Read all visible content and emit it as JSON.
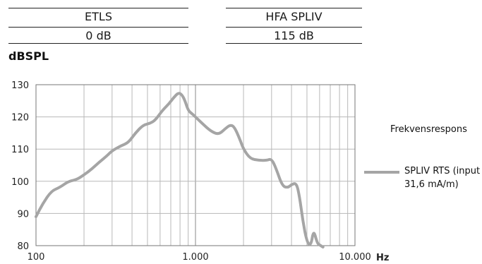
{
  "table": {
    "header_partial": "",
    "col1_header": "ETLS",
    "col2_header": "HFA SPLIV",
    "col1_value": "0 dB",
    "col2_value": "115 dB"
  },
  "chart_data": {
    "type": "line",
    "title": "",
    "ylabel": "dBSPL",
    "xlabel": "Hz",
    "xscale": "log",
    "xlim": [
      100,
      10000
    ],
    "ylim": [
      80,
      130
    ],
    "x_ticks": [
      {
        "value": 100,
        "label": "100"
      },
      {
        "value": 1000,
        "label": "1.000"
      },
      {
        "value": 10000,
        "label": "10.000"
      }
    ],
    "y_ticks": [
      80,
      90,
      100,
      110,
      120,
      130
    ],
    "grid": true,
    "legend_title": "Frekvensrespons",
    "legend_position": "right",
    "series": [
      {
        "name": "SPLIV RTS (input 31,6 mA/m)",
        "color": "#a5a5a5",
        "x": [
          100,
          110,
          125,
          140,
          160,
          180,
          200,
          220,
          250,
          280,
          300,
          340,
          380,
          420,
          470,
          520,
          560,
          620,
          680,
          730,
          780,
          820,
          860,
          900,
          950,
          1000,
          1100,
          1250,
          1400,
          1550,
          1650,
          1750,
          1900,
          2000,
          2200,
          2500,
          2800,
          3000,
          3200,
          3500,
          3800,
          4000,
          4300,
          4500,
          4700,
          5000,
          5300,
          5500,
          5800,
          6000,
          6300
        ],
        "y": [
          89,
          93,
          97,
          98,
          100,
          100.5,
          102,
          103.5,
          106,
          108,
          109.5,
          111,
          112,
          115,
          117.5,
          118,
          119,
          122,
          124,
          126,
          127.5,
          127,
          125,
          122,
          121,
          120,
          118,
          115.5,
          114.5,
          116.5,
          117.5,
          117,
          113,
          110,
          107,
          106.5,
          106.5,
          107,
          104,
          98.5,
          98,
          99,
          99.5,
          95,
          88,
          81,
          80,
          85,
          80.8,
          80.2,
          79.5
        ]
      }
    ]
  }
}
